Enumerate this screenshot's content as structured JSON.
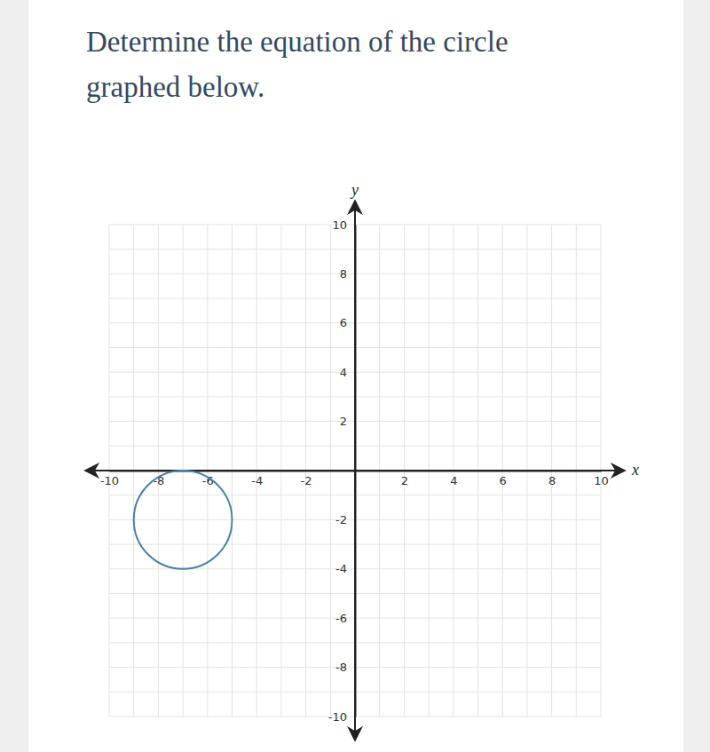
{
  "chart_data": {
    "type": "circle",
    "title": "Determine the equation of the circle graphed below.",
    "x_label": "x",
    "y_label": "y",
    "center": [
      -7,
      -2
    ],
    "radius": 2,
    "color": "#4a7fa5",
    "xlim": [
      -10,
      10
    ],
    "ylim": [
      -10,
      10
    ],
    "xticks": [
      -10,
      -8,
      -6,
      -4,
      -2,
      2,
      4,
      6,
      8,
      10
    ],
    "yticks": [
      -10,
      -8,
      -6,
      -4,
      -2,
      2,
      4,
      6,
      8,
      10
    ],
    "grid": true
  }
}
